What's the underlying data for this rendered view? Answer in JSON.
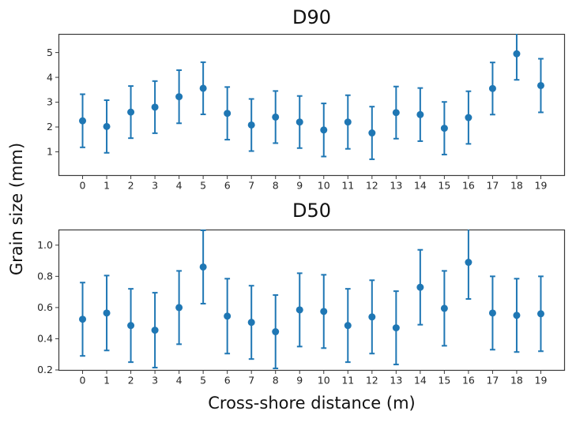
{
  "figure": {
    "xlabel": "Cross-shore distance (m)",
    "ylabel": "Grain size (mm)",
    "background": "#ffffff",
    "text_color": "#111111",
    "spine_color": "#3a3a3a",
    "accent_color": "#1f77b4"
  },
  "chart_data": [
    {
      "type": "scatter",
      "subtype": "errorbar",
      "title": "D90",
      "xlabel": "",
      "ylabel": "",
      "x": [
        0,
        1,
        2,
        3,
        4,
        5,
        6,
        7,
        8,
        9,
        10,
        11,
        12,
        13,
        14,
        15,
        16,
        17,
        18,
        19
      ],
      "y": [
        2.25,
        2.02,
        2.6,
        2.8,
        3.22,
        3.56,
        2.55,
        2.08,
        2.4,
        2.2,
        1.88,
        2.2,
        1.76,
        2.58,
        2.5,
        1.95,
        2.38,
        3.55,
        4.95,
        3.67
      ],
      "yerr": [
        1.07,
        1.06,
        1.05,
        1.05,
        1.07,
        1.05,
        1.06,
        1.05,
        1.05,
        1.05,
        1.07,
        1.08,
        1.06,
        1.05,
        1.07,
        1.06,
        1.06,
        1.05,
        1.05,
        1.08
      ],
      "xlim": [
        -1,
        20
      ],
      "ylim": [
        0.03,
        5.75
      ],
      "xtick_values": [
        0,
        1,
        2,
        3,
        4,
        5,
        6,
        7,
        8,
        9,
        10,
        11,
        12,
        13,
        14,
        15,
        16,
        17,
        18,
        19
      ],
      "xtick_labels": [
        "0",
        "1",
        "2",
        "3",
        "4",
        "5",
        "6",
        "7",
        "8",
        "9",
        "10",
        "11",
        "12",
        "13",
        "14",
        "15",
        "16",
        "17",
        "18",
        "19"
      ],
      "ytick_values": [
        1,
        2,
        3,
        4,
        5
      ],
      "ytick_labels": [
        "1",
        "2",
        "3",
        "4",
        "5"
      ],
      "color": "#1f77b4",
      "marker": "circle",
      "grid": false,
      "legend": null
    },
    {
      "type": "scatter",
      "subtype": "errorbar",
      "title": "D50",
      "xlabel": "Cross-shore distance (m)",
      "ylabel": "",
      "x": [
        0,
        1,
        2,
        3,
        4,
        5,
        6,
        7,
        8,
        9,
        10,
        11,
        12,
        13,
        14,
        15,
        16,
        17,
        18,
        19
      ],
      "y": [
        0.525,
        0.565,
        0.485,
        0.455,
        0.6,
        0.86,
        0.545,
        0.505,
        0.445,
        0.585,
        0.575,
        0.485,
        0.54,
        0.47,
        0.73,
        0.595,
        0.89,
        0.565,
        0.55,
        0.56
      ],
      "yerr": [
        0.235,
        0.24,
        0.235,
        0.24,
        0.235,
        0.235,
        0.24,
        0.235,
        0.235,
        0.235,
        0.235,
        0.235,
        0.235,
        0.235,
        0.24,
        0.24,
        0.235,
        0.235,
        0.235,
        0.24
      ],
      "xlim": [
        -1,
        20
      ],
      "ylim": [
        0.195,
        1.1
      ],
      "xtick_values": [
        0,
        1,
        2,
        3,
        4,
        5,
        6,
        7,
        8,
        9,
        10,
        11,
        12,
        13,
        14,
        15,
        16,
        17,
        18,
        19
      ],
      "xtick_labels": [
        "0",
        "1",
        "2",
        "3",
        "4",
        "5",
        "6",
        "7",
        "8",
        "9",
        "10",
        "11",
        "12",
        "13",
        "14",
        "15",
        "16",
        "17",
        "18",
        "19"
      ],
      "ytick_values": [
        0.2,
        0.4,
        0.6,
        0.8,
        1.0
      ],
      "ytick_labels": [
        "0.2",
        "0.4",
        "0.6",
        "0.8",
        "1.0"
      ],
      "color": "#1f77b4",
      "marker": "circle",
      "grid": false,
      "legend": null
    }
  ]
}
